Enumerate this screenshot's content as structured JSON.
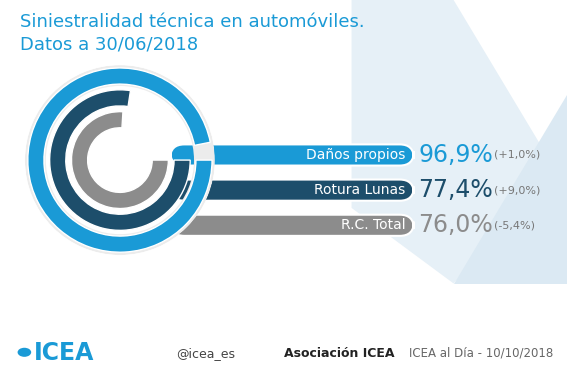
{
  "chart_data": {
    "type": "radial_bar",
    "title": "Siniestralidad técnica en automóviles.\nDatos a 30/06/2018",
    "categories": [
      "Daños propios",
      "Rotura Lunas",
      "R.C. Total"
    ],
    "values": [
      96.9,
      77.4,
      76.0
    ],
    "value_labels": [
      "96,9%",
      "77,4%",
      "76,0%"
    ],
    "data_labels": true,
    "changes": [
      1.0,
      9.0,
      -5.4
    ],
    "change_labels": [
      "(+1,0%)",
      "(+9,0%)",
      "(-5,4%)"
    ],
    "colors": [
      "#1a9ad6",
      "#1d4e6b",
      "#8c8c8c"
    ],
    "xlim": [
      0,
      100
    ],
    "tick_labels": false,
    "grid": false,
    "footer": {
      "logo": "ICEA",
      "twitter": "@icea_es",
      "linkedin": "Asociación ICEA",
      "source": "ICEA al Día - 10/10/2018"
    }
  }
}
